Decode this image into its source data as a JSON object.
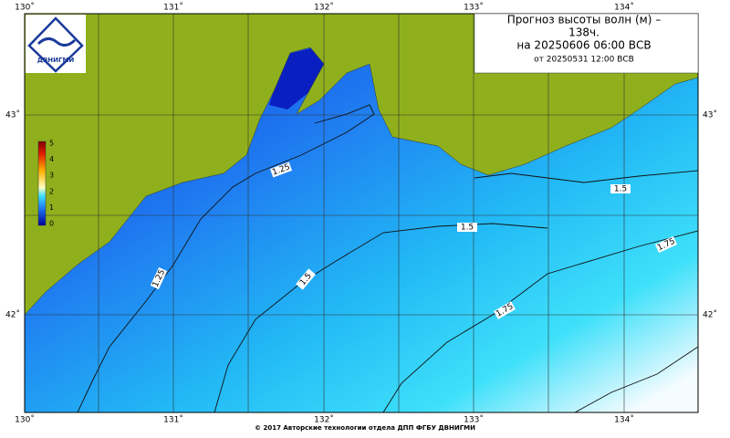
{
  "title": {
    "lines": [
      "Прогноз высоты волн (м) –",
      "138ч.",
      "на 20250606 06:00 ВСВ",
      "от 20250531 12:00 ВСВ"
    ]
  },
  "logo": "ДВНИГМИ",
  "lon_labels": [
    "130˚",
    "131˚",
    "132˚",
    "133˚",
    "134˚"
  ],
  "lat_labels": [
    "43˚",
    "42˚"
  ],
  "colorbar": {
    "ticks": [
      "5",
      "4",
      "3",
      "2",
      "1",
      "0"
    ]
  },
  "contours": [
    "1.25",
    "1.25",
    "1.5",
    "1.5",
    "1.5",
    "1.75",
    "1.75"
  ],
  "footer": "© 2017 Авторские технологии отдела ДПП ФГБУ ДВНИГМИ"
}
